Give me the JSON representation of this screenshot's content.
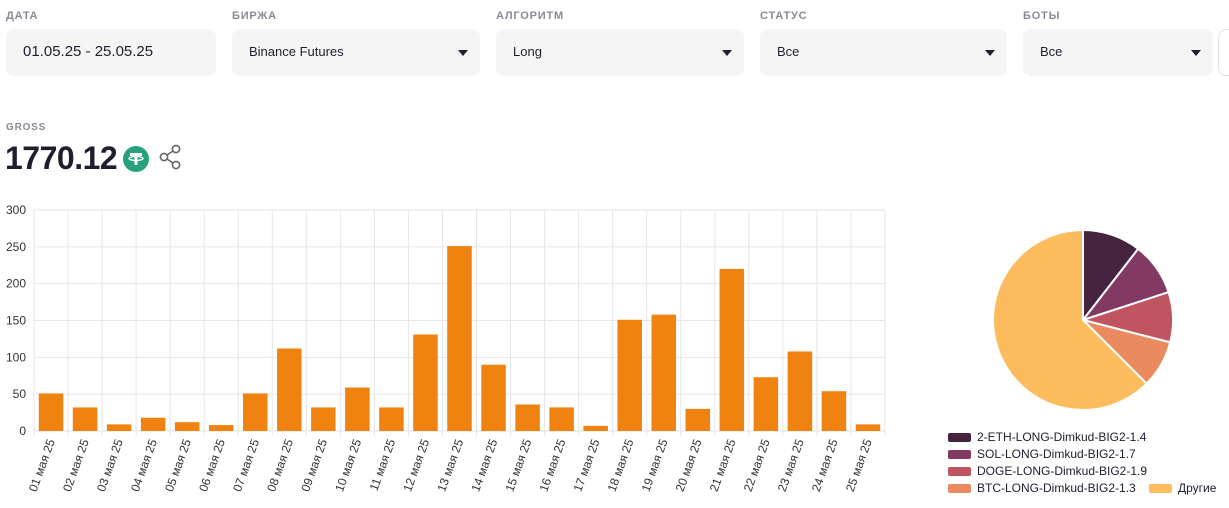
{
  "filters": [
    {
      "label": "ДАТА",
      "value": "01.05.25 - 25.05.25",
      "dropdown": false
    },
    {
      "label": "БИРЖА",
      "value": "Binance Futures",
      "dropdown": true
    },
    {
      "label": "АЛГОРИТМ",
      "value": "Long",
      "dropdown": true
    },
    {
      "label": "СТАТУС",
      "value": "Все",
      "dropdown": true
    },
    {
      "label": "БОТЫ",
      "value": "Все",
      "dropdown": true
    }
  ],
  "gross": {
    "label": "GROSS",
    "value": "1770.12",
    "currency_icon": "tether-usdt-icon",
    "share_icon": "share-icon"
  },
  "colors": {
    "bar": "#f0830f",
    "grid": "#e6e6e6",
    "axis_text": "#333333",
    "usdt": "#26a17b"
  },
  "chart_data": [
    {
      "type": "bar",
      "categories": [
        "01 мая 25",
        "02 мая 25",
        "03 мая 25",
        "04 мая 25",
        "05 мая 25",
        "06 мая 25",
        "07 мая 25",
        "08 мая 25",
        "09 мая 25",
        "10 мая 25",
        "11 мая 25",
        "12 мая 25",
        "13 мая 25",
        "14 мая 25",
        "15 мая 25",
        "16 мая 25",
        "17 мая 25",
        "18 мая 25",
        "19 мая 25",
        "20 мая 25",
        "21 мая 25",
        "22 мая 25",
        "23 мая 25",
        "24 мая 25",
        "25 мая 25"
      ],
      "values": [
        51,
        32,
        9,
        18,
        12,
        8,
        51,
        112,
        32,
        59,
        32,
        131,
        251,
        90,
        36,
        32,
        7,
        151,
        158,
        30,
        220,
        73,
        108,
        54,
        9
      ],
      "ylim": [
        0,
        300
      ],
      "yticks": [
        0,
        50,
        100,
        150,
        200,
        250,
        300
      ],
      "grid": true
    },
    {
      "type": "pie",
      "slices": [
        {
          "name": "2-ETH-LONG-Dimkud-BIG2-1.4",
          "value": 10.5,
          "color": "#46243f"
        },
        {
          "name": "SOL-LONG-Dimkud-BIG2-1.7",
          "value": 9.5,
          "color": "#823a62"
        },
        {
          "name": "DOGE-LONG-Dimkud-BIG2-1.9",
          "value": 9.0,
          "color": "#bf5561"
        },
        {
          "name": "BTC-LONG-Dimkud-BIG2-1.3",
          "value": 8.5,
          "color": "#e98b5f"
        },
        {
          "name": "Другие",
          "value": 62.5,
          "color": "#fdbc5d"
        }
      ],
      "legend_position": "bottom"
    }
  ]
}
